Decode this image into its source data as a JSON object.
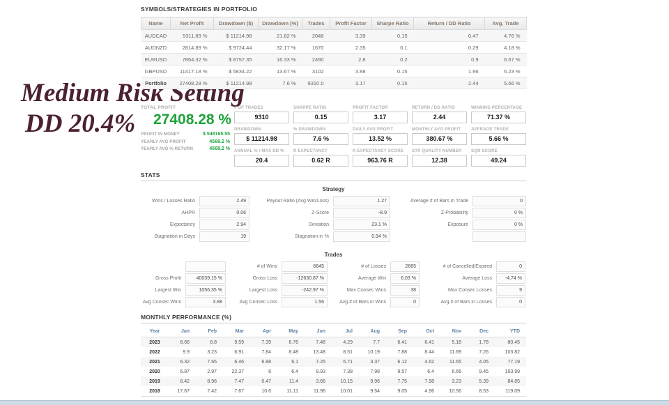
{
  "overlay": {
    "line1": "Medium Risk Setting",
    "line2": "DD 20.4%"
  },
  "colors": {
    "accent_green": "#1fa33c",
    "title_maroon": "#4b2133",
    "monthly_header_blue": "#5c80a5"
  },
  "portfolio": {
    "title": "SYMBOLS/STRATEGIES IN PORTFOLIO",
    "columns": [
      "Name",
      "Net Profit",
      "Drawdown ($)",
      "Drawdown (%)",
      "Trades",
      "Profit Factor",
      "Sharpe Ratio",
      "Return / DD Ratio",
      "Avg. Trade"
    ],
    "rows": [
      [
        "AUDCAD",
        "5311.89 %",
        "$ 11214.98",
        "21.82 %",
        "2048",
        "3.39",
        "0.15",
        "0.47",
        "4.76 %"
      ],
      [
        "AUDNZD",
        "2814.89 %",
        "$ 9724.44",
        "32.17 %",
        "1670",
        "2.35",
        "0.1",
        "0.29",
        "4.18 %"
      ],
      [
        "EURUSD",
        "7864.32 %",
        "$ 8757.35",
        "16.33 %",
        "2490",
        "2.8",
        "0.2",
        "0.9",
        "6.67 %"
      ],
      [
        "GBPUSD",
        "11417.18 %",
        "$ 5834.22",
        "13.67 %",
        "3102",
        "3.88",
        "0.15",
        "1.96",
        "6.23 %"
      ],
      [
        "Portfolio",
        "27408.28 %",
        "$ 11214.98",
        "7.6 %",
        "9310.0",
        "3.17",
        "0.15",
        "2.44",
        "5.66 %"
      ]
    ]
  },
  "total_profit": {
    "label": "TOTAL PROFIT",
    "value": "27408.28 %",
    "details": [
      {
        "label": "PROFIT IN MONEY",
        "value": "$ 548165.55"
      },
      {
        "label": "YEARLY AVG PROFIT",
        "value": "4568.2 %"
      },
      {
        "label": "YEARLY AVG % RETURN",
        "value": "4568.2 %"
      }
    ]
  },
  "stat_boxes": [
    {
      "label": "# OF TRADES",
      "value": "9310"
    },
    {
      "label": "SHARPE RATIO",
      "value": "0.15"
    },
    {
      "label": "PROFIT FACTOR",
      "value": "3.17"
    },
    {
      "label": "RETURN / DD RATIO",
      "value": "2.44"
    },
    {
      "label": "WINNING PERCENTAGE",
      "value": "71.37 %"
    },
    {
      "label": "DRAWDOWN",
      "value": "$ 11214.98"
    },
    {
      "label": "% DRAWDOWN",
      "value": "7.6 %"
    },
    {
      "label": "DAILY AVG PROFIT",
      "value": "13.52 %"
    },
    {
      "label": "MONTHLY AVG PROFIT",
      "value": "380.67 %"
    },
    {
      "label": "AVERAGE TRADE",
      "value": "5.66 %"
    },
    {
      "label": "ANNUAL % / MAX DD %",
      "value": "20.4"
    },
    {
      "label": "R EXPECTANCY",
      "value": "0.62 R"
    },
    {
      "label": "R EXPECTANCY SCORE",
      "value": "963.76 R"
    },
    {
      "label": "STR QUALITY NUMBER",
      "value": "12.38"
    },
    {
      "label": "SQN SCORE",
      "value": "49.24"
    }
  ],
  "stats": {
    "title": "STATS",
    "strategy": {
      "title": "Strategy",
      "rows": [
        [
          {
            "label": "Wins / Losses Ratio",
            "value": "2.49"
          },
          {
            "label": "Payout Ratio (Avg Win/Loss)",
            "value": "1.27"
          },
          {
            "label": "Average # of Bars in Trade",
            "value": "0"
          }
        ],
        [
          {
            "label": "AHPR",
            "value": "0.06"
          },
          {
            "label": "Z-Score",
            "value": "-8.9"
          },
          {
            "label": "Z-Probability",
            "value": "0 %"
          }
        ],
        [
          {
            "label": "Expectancy",
            "value": "2.94"
          },
          {
            "label": "Deviation",
            "value": "23.1 %"
          },
          {
            "label": "Exposure",
            "value": "0 %"
          }
        ],
        [
          {
            "label": "Stagnation in Days",
            "value": "19"
          },
          {
            "label": "Stagnation in %",
            "value": "0.94 %"
          },
          {
            "label": "",
            "value": ""
          }
        ]
      ]
    },
    "trades": {
      "title": "Trades",
      "rows": [
        [
          {
            "label": "",
            "value": ""
          },
          {
            "label": "# of Wins",
            "value": "6645"
          },
          {
            "label": "# of Losses",
            "value": "2665"
          },
          {
            "label": "# of Cancelled/Expired",
            "value": "0"
          }
        ],
        [
          {
            "label": "Gross Profit",
            "value": "40039.15 %"
          },
          {
            "label": "Gross Loss",
            "value": "-12630.87 %"
          },
          {
            "label": "Average Win",
            "value": "6.03 %"
          },
          {
            "label": "Average Loss",
            "value": "-4.74 %"
          }
        ],
        [
          {
            "label": "Largest Win",
            "value": "1056.35 %"
          },
          {
            "label": "Largest Loss",
            "value": "-242.97 %"
          },
          {
            "label": "Max Consec Wins",
            "value": "38"
          },
          {
            "label": "Max Consec Losses",
            "value": "9"
          }
        ],
        [
          {
            "label": "Avg Consec Wins",
            "value": "3.88"
          },
          {
            "label": "Avg Consec Loss",
            "value": "1.56"
          },
          {
            "label": "Avg # of Bars in Wins",
            "value": "0"
          },
          {
            "label": "Avg # of Bars in Losses",
            "value": "0"
          }
        ]
      ]
    }
  },
  "monthly": {
    "title": "MONTHLY PERFORMANCE (%)",
    "columns": [
      "Year",
      "Jan",
      "Feb",
      "Mar",
      "Apr",
      "May",
      "Jun",
      "Jul",
      "Aug",
      "Sep",
      "Oct",
      "Nov",
      "Dec",
      "YTD"
    ],
    "rows": [
      [
        "2023",
        "8.66",
        "8.8",
        "9.59",
        "7.39",
        "6.76",
        "7.48",
        "4.29",
        "7.7",
        "6.41",
        "6.41",
        "5.18",
        "1.78",
        "80.45"
      ],
      [
        "2022",
        "9.9",
        "3.23",
        "6.91",
        "7.84",
        "8.48",
        "13.48",
        "8.51",
        "10.19",
        "7.88",
        "8.44",
        "11.69",
        "7.26",
        "103.82"
      ],
      [
        "2021",
        "6.32",
        "7.65",
        "6.46",
        "6.88",
        "6.1",
        "7.25",
        "6.71",
        "3.37",
        "6.12",
        "4.62",
        "11.65",
        "4.05",
        "77.19"
      ],
      [
        "2020",
        "6.87",
        "2.97",
        "22.37",
        "8",
        "6.4",
        "9.93",
        "7.38",
        "7.98",
        "9.57",
        "6.4",
        "6.66",
        "9.45",
        "103.99"
      ],
      [
        "2019",
        "8.42",
        "8.96",
        "7.47",
        "0.47",
        "11.4",
        "3.66",
        "10.15",
        "9.96",
        "7.75",
        "7.98",
        "3.23",
        "5.39",
        "84.85"
      ],
      [
        "2018",
        "17.67",
        "7.42",
        "7.67",
        "10.6",
        "11.11",
        "11.96",
        "10.01",
        "9.54",
        "9.05",
        "4.96",
        "10.56",
        "8.53",
        "119.09"
      ]
    ]
  }
}
